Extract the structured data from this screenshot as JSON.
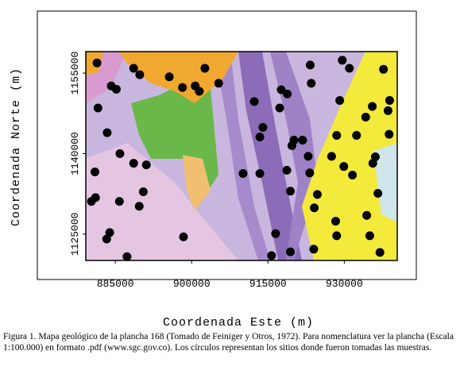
{
  "chart_data": {
    "type": "scatter",
    "xlabel": "Coordenada Este  (m)",
    "ylabel": "Coordenada Norte  (m)",
    "xlim": [
      879200,
      940400
    ],
    "ylim": [
      1120100,
      1159000
    ],
    "xticks": [
      885000,
      900000,
      915000,
      930000
    ],
    "yticks": [
      1125000,
      1140000,
      1155000
    ],
    "color": "#000000",
    "x": [
      881400,
      884200,
      885200,
      881600,
      883400,
      885900,
      888600,
      889800,
      895600,
      898200,
      900700,
      901500,
      902600,
      905300,
      888600,
      891100,
      881000,
      881100,
      880300,
      885800,
      890500,
      889700,
      883900,
      883300,
      887300,
      898400,
      912300,
      917600,
      917300,
      918800,
      923300,
      923500,
      914000,
      913400,
      920100,
      919700,
      921800,
      910100,
      913400,
      918700,
      923200,
      922900,
      919400,
      924700,
      924100,
      916500,
      915700,
      919400,
      924000,
      929600,
      931000,
      937700,
      929100,
      935500,
      934200,
      938900,
      938600,
      928500,
      932400,
      938800,
      927500,
      929900,
      931600,
      935600,
      936100,
      936600,
      934400,
      928300,
      928500,
      935000,
      937000
    ],
    "values": [
      1156900,
      1152600,
      1152000,
      1148500,
      1143900,
      1140000,
      1155900,
      1154700,
      1154300,
      1152300,
      1152600,
      1151600,
      1155900,
      1153100,
      1138200,
      1137900,
      1136600,
      1131800,
      1131100,
      1131100,
      1132900,
      1130200,
      1125300,
      1124100,
      1120800,
      1124500,
      1149700,
      1151900,
      1148500,
      1151100,
      1156500,
      1153100,
      1144900,
      1143100,
      1142500,
      1141500,
      1142500,
      1136300,
      1136300,
      1136900,
      1136400,
      1139500,
      1133000,
      1132400,
      1129900,
      1125100,
      1121000,
      1121700,
      1122200,
      1157400,
      1155900,
      1155700,
      1149900,
      1148800,
      1146800,
      1149900,
      1148000,
      1143400,
      1143400,
      1143600,
      1139500,
      1137600,
      1136000,
      1138200,
      1139400,
      1132600,
      1128500,
      1127400,
      1124700,
      1124700,
      1121600
    ]
  },
  "caption": "Figura 1.  Mapa geológico de la plancha 168 (Tomado de Feiniger y Otros, 1972). Para nomenclatura ver la plancha (Escala 1:100.000) en formato .pdf (www.sgc.gov.co). Los círculos representan los sitios donde fueron tomadas las muestras."
}
